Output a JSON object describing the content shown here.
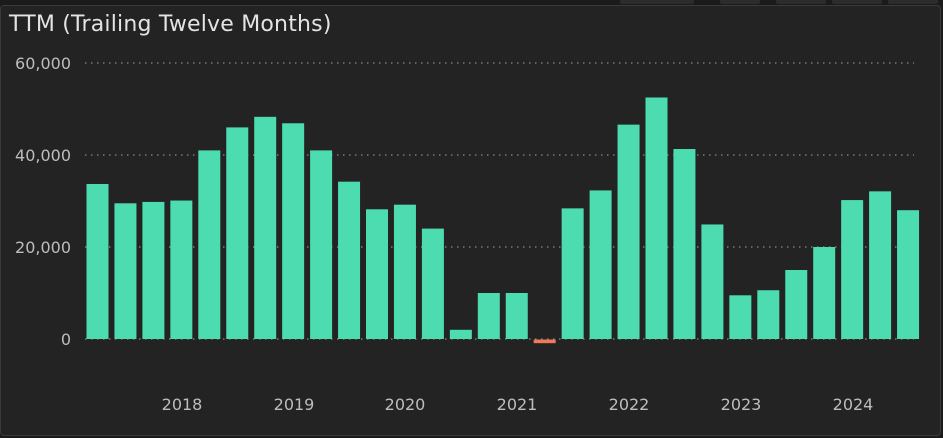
{
  "chart_data": {
    "type": "bar",
    "title": "TTM (Trailing Twelve Months)",
    "ylim": [
      0,
      60000
    ],
    "y_ticks": [
      {
        "value": 60000,
        "label": "60,000"
      },
      {
        "value": 40000,
        "label": "40,000"
      },
      {
        "value": 20000,
        "label": "20,000"
      },
      {
        "value": 0,
        "label": "0"
      }
    ],
    "x_tick_labels": [
      "2018",
      "2019",
      "2020",
      "2021",
      "2022",
      "2023",
      "2024"
    ],
    "values": [
      33700,
      29500,
      29800,
      30100,
      41000,
      46000,
      48300,
      46900,
      41000,
      34200,
      28200,
      29200,
      24000,
      2000,
      10000,
      10000,
      -800,
      28400,
      32300,
      46600,
      52500,
      41300,
      24900,
      9500,
      10600,
      15000,
      20000,
      30200,
      32100,
      28000
    ],
    "grid": true,
    "colors": {
      "positive": "#4cdcb0",
      "negative": "#f07a58",
      "grid": "#8a8a8a"
    }
  }
}
